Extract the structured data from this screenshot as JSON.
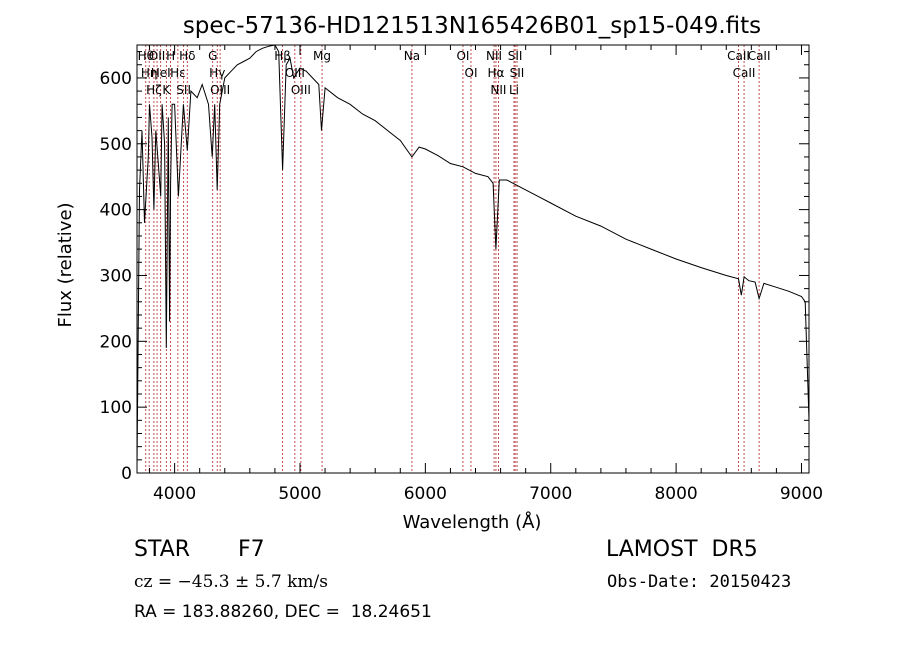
{
  "chart_data": {
    "type": "line",
    "title": "spec-57136-HD121513N165426B01_sp15-049.fits",
    "xlabel": "Wavelength (Å)",
    "ylabel": "Flux (relative)",
    "xlim": [
      3700,
      9060
    ],
    "ylim": [
      0,
      650
    ],
    "xticks": [
      4000,
      5000,
      6000,
      7000,
      8000,
      9000
    ],
    "yticks": [
      0,
      100,
      200,
      300,
      400,
      500,
      600
    ],
    "x_minor_step": 200,
    "y_minor_step": 20,
    "grid": false,
    "series": [
      {
        "x": [
          3700,
          3720,
          3740,
          3760,
          3790,
          3800,
          3820,
          3835,
          3850,
          3870,
          3889,
          3900,
          3920,
          3934,
          3950,
          3960,
          3968,
          3980,
          4000,
          4030,
          4070,
          4101,
          4130,
          4180,
          4220,
          4270,
          4300,
          4320,
          4340,
          4360,
          4400,
          4450,
          4500,
          4550,
          4600,
          4650,
          4700,
          4750,
          4800,
          4830,
          4861,
          4890,
          4920,
          4950,
          5000,
          5050,
          5100,
          5150,
          5172,
          5200,
          5300,
          5400,
          5500,
          5600,
          5700,
          5800,
          5893,
          5950,
          6000,
          6100,
          6200,
          6300,
          6400,
          6500,
          6540,
          6563,
          6590,
          6650,
          6700,
          6800,
          6900,
          7000,
          7200,
          7400,
          7600,
          7800,
          8000,
          8200,
          8400,
          8498,
          8520,
          8542,
          8580,
          8630,
          8662,
          8700,
          8800,
          8900,
          8950,
          9000,
          9030,
          9060
        ],
        "values": [
          10,
          430,
          520,
          380,
          480,
          560,
          510,
          400,
          520,
          470,
          420,
          560,
          500,
          190,
          540,
          230,
          440,
          560,
          560,
          420,
          560,
          490,
          580,
          570,
          590,
          560,
          480,
          560,
          430,
          560,
          600,
          610,
          620,
          625,
          630,
          640,
          645,
          648,
          650,
          640,
          460,
          620,
          630,
          600,
          615,
          610,
          600,
          590,
          520,
          585,
          570,
          560,
          545,
          535,
          520,
          505,
          480,
          495,
          492,
          482,
          470,
          465,
          455,
          450,
          440,
          340,
          445,
          445,
          440,
          430,
          420,
          410,
          390,
          375,
          355,
          340,
          325,
          312,
          300,
          295,
          270,
          298,
          292,
          290,
          265,
          288,
          282,
          276,
          272,
          268,
          260,
          80
        ]
      }
    ],
    "lines": [
      {
        "x": 3770,
        "label": "Hθ"
      },
      {
        "x": 3797,
        "label": "Hη"
      },
      {
        "x": 3835,
        "label": "Hζ"
      },
      {
        "x": 3860,
        "label": "OII"
      },
      {
        "x": 3889,
        "label": "HeI"
      },
      {
        "x": 3934,
        "label": "K"
      },
      {
        "x": 3968,
        "label": "H"
      },
      {
        "x": 4026,
        "label": "Hε"
      },
      {
        "x": 4072,
        "label": "SII"
      },
      {
        "x": 4101,
        "label": "Hδ"
      },
      {
        "x": 4304,
        "label": "G"
      },
      {
        "x": 4340,
        "label": "Hγ"
      },
      {
        "x": 4363,
        "label": "OIII"
      },
      {
        "x": 4861,
        "label": "Hβ"
      },
      {
        "x": 4959,
        "label": "OIII"
      },
      {
        "x": 5007,
        "label": "OIII"
      },
      {
        "x": 5176,
        "label": "Mg"
      },
      {
        "x": 5893,
        "label": "Na"
      },
      {
        "x": 6300,
        "label": "OI"
      },
      {
        "x": 6364,
        "label": "OI"
      },
      {
        "x": 6548,
        "label": "NII"
      },
      {
        "x": 6563,
        "label": "Hα"
      },
      {
        "x": 6583,
        "label": "NII"
      },
      {
        "x": 6707,
        "label": "Li"
      },
      {
        "x": 6716,
        "label": "SII"
      },
      {
        "x": 6731,
        "label": "SII"
      },
      {
        "x": 8498,
        "label": "CaII"
      },
      {
        "x": 8542,
        "label": "CaII"
      },
      {
        "x": 8662,
        "label": "CaII"
      }
    ]
  },
  "info": {
    "obj_class": "STAR",
    "obj_subclass": "F7",
    "survey": "LAMOST  DR5",
    "cz": "cz = −45.3 ± 5.7 km/s",
    "obs_date": "Obs-Date: 20150423",
    "radec": "RA = 183.88260, DEC =  18.24651"
  },
  "colors": {
    "spectrum": "#000000",
    "line_marker": "#b22222",
    "axes": "#000000",
    "background": "#ffffff"
  }
}
